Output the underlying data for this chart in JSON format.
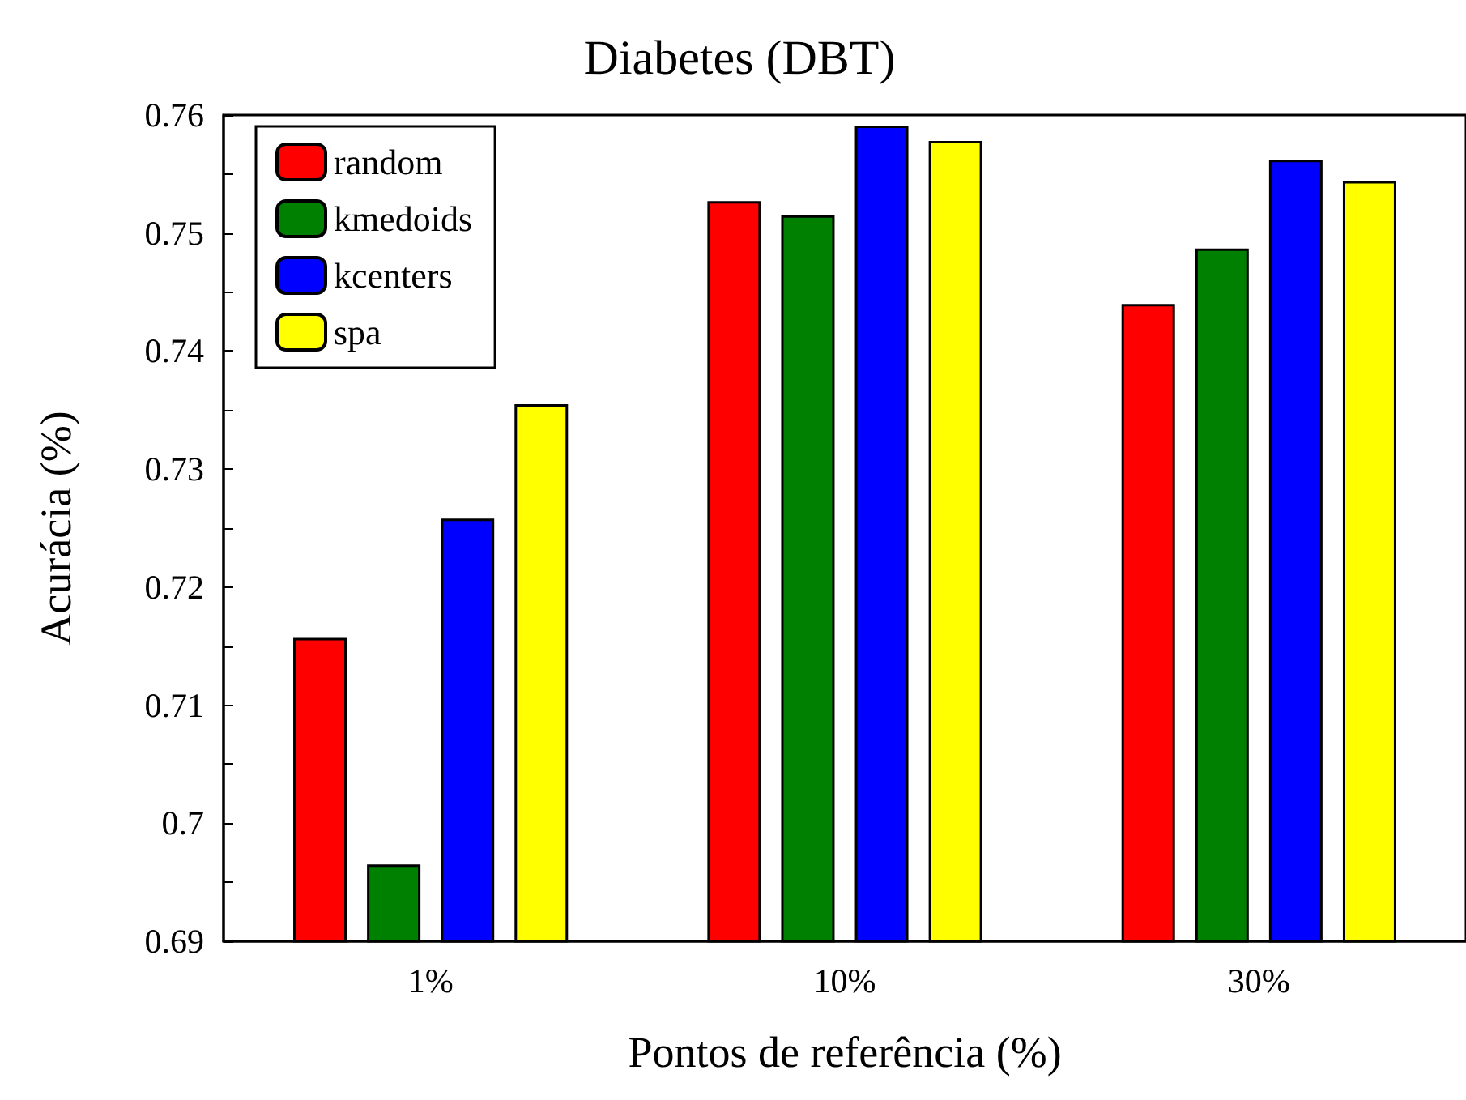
{
  "chart_data": {
    "type": "bar",
    "title": "Diabetes (DBT)",
    "xlabel": "Pontos de referência (%)",
    "ylabel": "Acurácia (%)",
    "categories": [
      "1%",
      "10%",
      "30%"
    ],
    "series": [
      {
        "name": "random",
        "color": "#ff0000",
        "values": [
          0.7157,
          0.7527,
          0.744
        ]
      },
      {
        "name": "kmedoids",
        "color": "#008000",
        "values": [
          0.6965,
          0.7515,
          0.7487
        ]
      },
      {
        "name": "kcenters",
        "color": "#0000ff",
        "values": [
          0.7258,
          0.7591,
          0.7562
        ]
      },
      {
        "name": "spa",
        "color": "#ffff00",
        "values": [
          0.7355,
          0.7578,
          0.7544
        ]
      }
    ],
    "ylim": [
      0.69,
      0.76
    ],
    "yticks": [
      0.69,
      {
        "value": 0.695,
        "label": null
      },
      0.7,
      {
        "value": 0.705,
        "label": null
      },
      0.71,
      {
        "value": 0.715,
        "label": null
      },
      0.72,
      {
        "value": 0.725,
        "label": null
      },
      0.73,
      {
        "value": 0.735,
        "label": null
      },
      0.74,
      {
        "value": 0.745,
        "label": null
      },
      0.75,
      {
        "value": 0.755,
        "label": null
      },
      0.76
    ],
    "grid": false,
    "legend": "top left"
  }
}
